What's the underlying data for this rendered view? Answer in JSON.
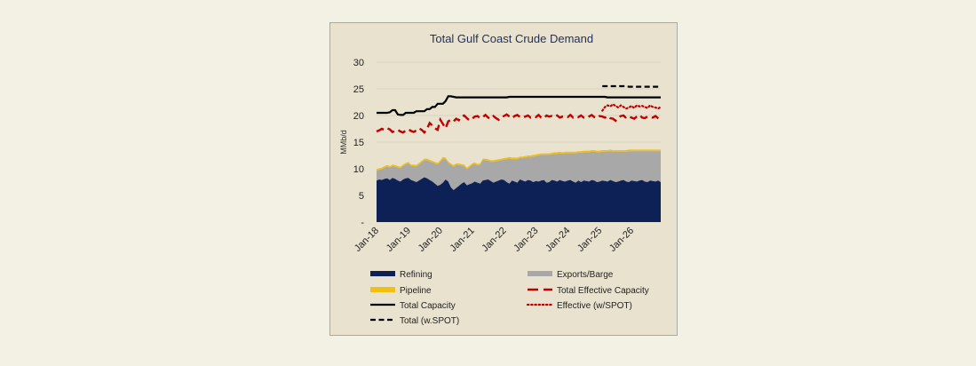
{
  "chart_data": {
    "type": "area",
    "title": "Total Gulf Coast Crude Demand",
    "xlabel": "",
    "ylabel": "MMb/d",
    "ylim": [
      0,
      30
    ],
    "yticks": [
      "-",
      "5",
      "10",
      "15",
      "20",
      "25",
      "30"
    ],
    "xticks": [
      "Jan-18",
      "Jan-19",
      "Jan-20",
      "Jan-21",
      "Jan-22",
      "Jan-23",
      "Jan-24",
      "Jan-25",
      "Jan-26"
    ],
    "x_start": "Jan-18",
    "x_end": "Dec-26",
    "grid": "horizontal",
    "legend_position": "bottom",
    "colors": {
      "refining": "#0d2157",
      "exports": "#a8a8a8",
      "pipeline": "#f2c013",
      "effective": "#c00000",
      "capacity": "#000000",
      "effective_spot": "#c00000",
      "total_spot": "#000000"
    },
    "series": [
      {
        "name": "Refining",
        "style": "area",
        "values": [
          7.8,
          8.0,
          7.9,
          8.1,
          8.2,
          7.9,
          8.3,
          8.1,
          7.8,
          7.6,
          8.0,
          8.2,
          8.3,
          7.9,
          7.7,
          7.5,
          7.8,
          8.1,
          8.4,
          8.2,
          7.9,
          7.6,
          7.2,
          6.8,
          7.0,
          7.4,
          8.0,
          7.6,
          6.5,
          6.0,
          6.4,
          6.8,
          7.2,
          7.5,
          6.9,
          7.1,
          7.3,
          7.6,
          7.4,
          7.2,
          7.8,
          7.9,
          8.0,
          7.7,
          7.4,
          7.6,
          7.8,
          8.0,
          7.9,
          7.5,
          7.2,
          7.8,
          7.6,
          7.4,
          8.0,
          7.8,
          7.6,
          7.9,
          7.8,
          7.5,
          7.7,
          7.6,
          7.8,
          7.9,
          7.4,
          7.5,
          7.9,
          7.8,
          7.6,
          7.9,
          7.7,
          7.6,
          7.8,
          7.9,
          7.6,
          7.4,
          7.8,
          7.5,
          7.8,
          7.7,
          7.6,
          7.9,
          7.8,
          7.5,
          7.6,
          7.8,
          7.7,
          7.6,
          7.9,
          7.7,
          7.5,
          7.6,
          7.8,
          7.9,
          7.6,
          7.5,
          7.8,
          7.7,
          7.6,
          7.8,
          7.9,
          7.6,
          7.5,
          7.8,
          7.7,
          7.6,
          7.8,
          7.5
        ]
      },
      {
        "name": "Exports/Barge",
        "style": "area",
        "values": [
          1.8,
          1.8,
          2.0,
          2.1,
          2.2,
          2.3,
          2.2,
          2.3,
          2.4,
          2.5,
          2.5,
          2.6,
          2.7,
          2.6,
          2.8,
          2.9,
          3.0,
          3.1,
          3.2,
          3.4,
          3.5,
          3.6,
          3.8,
          4.0,
          4.3,
          4.5,
          3.8,
          3.5,
          4.2,
          4.4,
          4.3,
          3.9,
          3.4,
          3.0,
          3.0,
          3.2,
          3.4,
          3.3,
          3.2,
          3.5,
          3.8,
          3.7,
          3.5,
          3.6,
          3.9,
          3.8,
          3.7,
          3.6,
          3.8,
          4.3,
          4.7,
          4.0,
          4.2,
          4.4,
          4.0,
          4.2,
          4.5,
          4.3,
          4.4,
          4.8,
          4.7,
          4.9,
          4.8,
          4.7,
          5.2,
          5.1,
          4.8,
          5.0,
          5.2,
          5.0,
          5.1,
          5.3,
          5.1,
          5.0,
          5.3,
          5.5,
          5.2,
          5.5,
          5.3,
          5.4,
          5.5,
          5.3,
          5.4,
          5.6,
          5.5,
          5.4,
          5.5,
          5.6,
          5.4,
          5.5,
          5.7,
          5.6,
          5.4,
          5.3,
          5.6,
          5.8,
          5.5,
          5.6,
          5.7,
          5.5,
          5.4,
          5.7,
          5.8,
          5.5,
          5.6,
          5.7,
          5.5,
          5.8
        ]
      },
      {
        "name": "Pipeline",
        "style": "area",
        "values": [
          0.3,
          0.3,
          0.3,
          0.3,
          0.3,
          0.3,
          0.3,
          0.3,
          0.3,
          0.3,
          0.3,
          0.3,
          0.3,
          0.3,
          0.3,
          0.3,
          0.3,
          0.3,
          0.3,
          0.3,
          0.3,
          0.3,
          0.3,
          0.3,
          0.3,
          0.3,
          0.3,
          0.3,
          0.3,
          0.3,
          0.3,
          0.3,
          0.3,
          0.3,
          0.3,
          0.3,
          0.3,
          0.3,
          0.3,
          0.3,
          0.3,
          0.3,
          0.3,
          0.3,
          0.3,
          0.3,
          0.3,
          0.3,
          0.3,
          0.3,
          0.3,
          0.3,
          0.3,
          0.3,
          0.3,
          0.3,
          0.3,
          0.3,
          0.3,
          0.3,
          0.3,
          0.3,
          0.3,
          0.3,
          0.3,
          0.3,
          0.3,
          0.3,
          0.3,
          0.3,
          0.3,
          0.3,
          0.3,
          0.3,
          0.3,
          0.3,
          0.3,
          0.3,
          0.3,
          0.3,
          0.3,
          0.3,
          0.3,
          0.3,
          0.3,
          0.3,
          0.3,
          0.3,
          0.3,
          0.3,
          0.3,
          0.3,
          0.3,
          0.3,
          0.3,
          0.3,
          0.3,
          0.3,
          0.3,
          0.3,
          0.3,
          0.3,
          0.3,
          0.3,
          0.3,
          0.3,
          0.3,
          0.3
        ]
      },
      {
        "name": "Total Effective Capacity",
        "style": "dash",
        "values": [
          17.0,
          17.2,
          17.5,
          17.3,
          17.6,
          17.4,
          16.9,
          17.1,
          17.3,
          17.0,
          16.8,
          17.2,
          17.4,
          17.1,
          16.9,
          17.2,
          17.6,
          17.3,
          16.8,
          17.5,
          18.6,
          18.1,
          17.6,
          17.3,
          19.2,
          18.4,
          17.6,
          18.9,
          19.2,
          18.9,
          19.4,
          19.1,
          19.8,
          20.0,
          19.5,
          19.1,
          19.4,
          19.8,
          19.9,
          19.5,
          19.7,
          20.1,
          19.6,
          19.4,
          19.9,
          19.5,
          19.2,
          19.7,
          19.9,
          20.2,
          19.8,
          19.5,
          19.9,
          20.1,
          19.7,
          19.6,
          19.8,
          20.0,
          19.6,
          19.8,
          19.7,
          20.1,
          19.6,
          19.5,
          20.0,
          19.8,
          19.9,
          19.7,
          20.0,
          19.6,
          19.8,
          19.9,
          19.7,
          20.1,
          19.6,
          19.8,
          19.7,
          20.0,
          19.6,
          19.5,
          19.8,
          20.1,
          19.7,
          19.5,
          19.9,
          19.8,
          19.6,
          19.9,
          19.5,
          19.4,
          19.0,
          19.6,
          19.9,
          20.0,
          19.5,
          19.8,
          19.6,
          19.4,
          19.8,
          20.1,
          19.6,
          19.5,
          19.8,
          19.7,
          19.6,
          19.9,
          19.5,
          19.2
        ]
      },
      {
        "name": "Total Capacity",
        "style": "solid",
        "values": [
          20.5,
          20.5,
          20.5,
          20.5,
          20.5,
          20.6,
          21.0,
          21.0,
          20.2,
          20.1,
          20.1,
          20.5,
          20.5,
          20.5,
          20.5,
          20.8,
          20.8,
          20.8,
          20.8,
          21.2,
          21.2,
          21.6,
          21.6,
          22.2,
          22.2,
          22.2,
          22.7,
          23.6,
          23.6,
          23.5,
          23.4,
          23.4,
          23.4,
          23.4,
          23.4,
          23.4,
          23.4,
          23.4,
          23.4,
          23.4,
          23.4,
          23.4,
          23.4,
          23.4,
          23.4,
          23.4,
          23.4,
          23.4,
          23.4,
          23.4,
          23.5,
          23.5,
          23.5,
          23.5,
          23.5,
          23.5,
          23.5,
          23.5,
          23.5,
          23.5,
          23.5,
          23.5,
          23.5,
          23.5,
          23.5,
          23.5,
          23.5,
          23.5,
          23.5,
          23.5,
          23.5,
          23.5,
          23.5,
          23.5,
          23.5,
          23.5,
          23.5,
          23.5,
          23.5,
          23.5,
          23.5,
          23.5,
          23.5,
          23.5,
          23.5,
          23.5,
          23.5,
          23.4,
          23.4,
          23.4,
          23.4,
          23.4,
          23.4,
          23.4,
          23.4,
          23.4,
          23.4,
          23.4,
          23.4,
          23.4,
          23.4,
          23.4,
          23.4,
          23.4,
          23.4,
          23.4,
          23.4,
          23.4
        ]
      },
      {
        "name": "Effective (w/SPOT)",
        "style": "dot",
        "start_index": 85,
        "values": [
          20.9,
          21.6,
          21.9,
          21.7,
          22.1,
          21.8,
          21.5,
          21.9,
          21.6,
          21.3,
          21.5,
          21.8,
          21.4,
          21.9,
          21.7,
          21.8,
          21.6,
          21.4,
          21.9,
          21.6,
          21.5,
          21.3,
          21.6
        ]
      },
      {
        "name": "Total (w.SPOT)",
        "style": "bigdash",
        "start_index": 85,
        "values": [
          25.5,
          25.5,
          25.5,
          25.5,
          25.5,
          25.5,
          25.5,
          25.5,
          25.5,
          25.5,
          25.4,
          25.4,
          25.4,
          25.4,
          25.4,
          25.4,
          25.4,
          25.4,
          25.4,
          25.4,
          25.4,
          25.4,
          25.4
        ]
      }
    ]
  },
  "legend": [
    {
      "label": "Refining",
      "style": "swatch",
      "color": "#0d2157"
    },
    {
      "label": "Exports/Barge",
      "style": "swatch",
      "color": "#a8a8a8"
    },
    {
      "label": "Pipeline",
      "style": "swatch",
      "color": "#f2c013"
    },
    {
      "label": "Total Effective Capacity",
      "style": "dash",
      "color": "#c00000"
    },
    {
      "label": "Total Capacity",
      "style": "solid",
      "color": "#000000"
    },
    {
      "label": "Effective (w/SPOT)",
      "style": "dot",
      "color": "#c00000"
    },
    {
      "label": "Total (w.SPOT)",
      "style": "bigdash",
      "color": "#000000"
    }
  ]
}
